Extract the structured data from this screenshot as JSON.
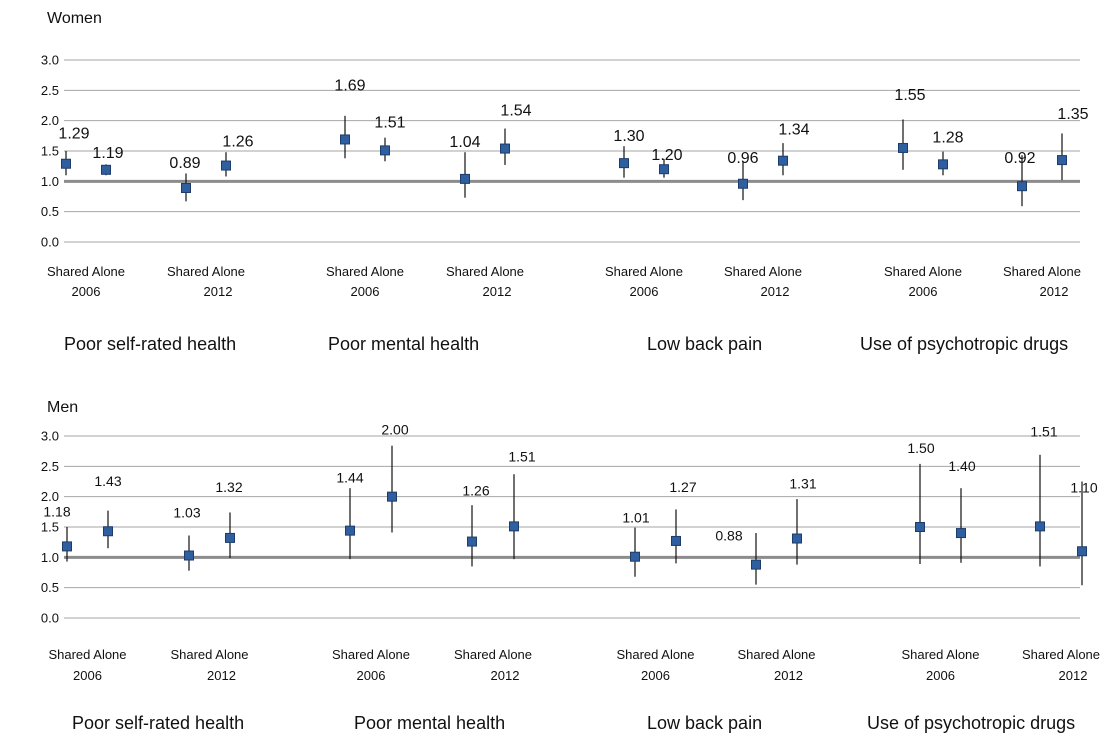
{
  "chart_data": [
    {
      "type": "scatter",
      "title": "Women",
      "yticks": [
        "0.0",
        "0.5",
        "1.0",
        "1.5",
        "2.0",
        "2.5",
        "3.0"
      ],
      "ylim": [
        0,
        3
      ],
      "reference_line": 1.0,
      "groups": [
        "Poor self-rated health",
        "Poor mental health",
        "Low back pain",
        "Use of psychotropic drugs"
      ],
      "subgroups": [
        {
          "labels": [
            "Shared",
            "Alone"
          ],
          "year": "2006"
        },
        {
          "labels": [
            "Shared",
            "Alone"
          ],
          "year": "2012"
        }
      ],
      "points": [
        {
          "group": "Poor self-rated health",
          "year": "2006",
          "category": "Shared",
          "value": 1.29,
          "label": "1.29",
          "ci": [
            1.1,
            1.5
          ]
        },
        {
          "group": "Poor self-rated health",
          "year": "2006",
          "category": "Alone",
          "value": 1.19,
          "label": "1.19",
          "ci": [
            1.1,
            1.28
          ]
        },
        {
          "group": "Poor self-rated health",
          "year": "2012",
          "category": "Shared",
          "value": 0.89,
          "label": "0.89",
          "ci": [
            0.67,
            1.13
          ]
        },
        {
          "group": "Poor self-rated health",
          "year": "2012",
          "category": "Alone",
          "value": 1.26,
          "label": "1.26",
          "ci": [
            1.08,
            1.48
          ]
        },
        {
          "group": "Poor mental health",
          "year": "2006",
          "category": "Shared",
          "value": 1.69,
          "label": "1.69",
          "ci": [
            1.38,
            2.08
          ]
        },
        {
          "group": "Poor mental health",
          "year": "2006",
          "category": "Alone",
          "value": 1.51,
          "label": "1.51",
          "ci": [
            1.33,
            1.72
          ]
        },
        {
          "group": "Poor mental health",
          "year": "2012",
          "category": "Shared",
          "value": 1.04,
          "label": "1.04",
          "ci": [
            0.73,
            1.48
          ]
        },
        {
          "group": "Poor mental health",
          "year": "2012",
          "category": "Alone",
          "value": 1.54,
          "label": "1.54",
          "ci": [
            1.27,
            1.87
          ]
        },
        {
          "group": "Low back pain",
          "year": "2006",
          "category": "Shared",
          "value": 1.3,
          "label": "1.30",
          "ci": [
            1.06,
            1.58
          ]
        },
        {
          "group": "Low back pain",
          "year": "2006",
          "category": "Alone",
          "value": 1.2,
          "label": "1.20",
          "ci": [
            1.06,
            1.37
          ]
        },
        {
          "group": "Low back pain",
          "year": "2012",
          "category": "Shared",
          "value": 0.96,
          "label": "0.96",
          "ci": [
            0.69,
            1.32
          ]
        },
        {
          "group": "Low back pain",
          "year": "2012",
          "category": "Alone",
          "value": 1.34,
          "label": "1.34",
          "ci": [
            1.1,
            1.63
          ]
        },
        {
          "group": "Use of psychotropic drugs",
          "year": "2006",
          "category": "Shared",
          "value": 1.55,
          "label": "1.55",
          "ci": [
            1.19,
            2.02
          ]
        },
        {
          "group": "Use of psychotropic drugs",
          "year": "2006",
          "category": "Alone",
          "value": 1.28,
          "label": "1.28",
          "ci": [
            1.1,
            1.49
          ]
        },
        {
          "group": "Use of psychotropic drugs",
          "year": "2012",
          "category": "Shared",
          "value": 0.92,
          "label": "0.92",
          "ci": [
            0.59,
            1.43
          ]
        },
        {
          "group": "Use of psychotropic drugs",
          "year": "2012",
          "category": "Alone",
          "value": 1.35,
          "label": "1.35",
          "ci": [
            1.02,
            1.79
          ]
        }
      ]
    },
    {
      "type": "scatter",
      "title": "Men",
      "yticks": [
        "0.0",
        "0.5",
        "1.0",
        "1.5",
        "2.0",
        "2.5",
        "3.0"
      ],
      "ylim": [
        0,
        3
      ],
      "reference_line": 1.0,
      "groups": [
        "Poor self-rated health",
        "Poor mental health",
        "Low back pain",
        "Use of psychotropic drugs"
      ],
      "subgroups": [
        {
          "labels": [
            "Shared",
            "Alone"
          ],
          "year": "2006"
        },
        {
          "labels": [
            "Shared",
            "Alone"
          ],
          "year": "2012"
        }
      ],
      "points": [
        {
          "group": "Poor self-rated health",
          "year": "2006",
          "category": "Shared",
          "value": 1.18,
          "label": "1.18",
          "ci": [
            0.93,
            1.5
          ]
        },
        {
          "group": "Poor self-rated health",
          "year": "2006",
          "category": "Alone",
          "value": 1.43,
          "label": "1.43",
          "ci": [
            1.15,
            1.77
          ]
        },
        {
          "group": "Poor self-rated health",
          "year": "2012",
          "category": "Shared",
          "value": 1.03,
          "label": "1.03",
          "ci": [
            0.78,
            1.36
          ]
        },
        {
          "group": "Poor self-rated health",
          "year": "2012",
          "category": "Alone",
          "value": 1.32,
          "label": "1.32",
          "ci": [
            0.99,
            1.74
          ]
        },
        {
          "group": "Poor mental health",
          "year": "2006",
          "category": "Shared",
          "value": 1.44,
          "label": "1.44",
          "ci": [
            0.97,
            2.14
          ]
        },
        {
          "group": "Poor mental health",
          "year": "2006",
          "category": "Alone",
          "value": 2.0,
          "label": "2.00",
          "ci": [
            1.41,
            2.84
          ]
        },
        {
          "group": "Poor mental health",
          "year": "2012",
          "category": "Shared",
          "value": 1.26,
          "label": "1.26",
          "ci": [
            0.85,
            1.86
          ]
        },
        {
          "group": "Poor mental health",
          "year": "2012",
          "category": "Alone",
          "value": 1.51,
          "label": "1.51",
          "ci": [
            0.97,
            2.37
          ]
        },
        {
          "group": "Low back pain",
          "year": "2006",
          "category": "Shared",
          "value": 1.01,
          "label": "1.01",
          "ci": [
            0.68,
            1.49
          ]
        },
        {
          "group": "Low back pain",
          "year": "2006",
          "category": "Alone",
          "value": 1.27,
          "label": "1.27",
          "ci": [
            0.9,
            1.79
          ]
        },
        {
          "group": "Low back pain",
          "year": "2012",
          "category": "Shared",
          "value": 0.88,
          "label": "0.88",
          "ci": [
            0.55,
            1.4
          ]
        },
        {
          "group": "Low back pain",
          "year": "2012",
          "category": "Alone",
          "value": 1.31,
          "label": "1.31",
          "ci": [
            0.88,
            1.96
          ]
        },
        {
          "group": "Use of psychotropic drugs",
          "year": "2006",
          "category": "Shared",
          "value": 1.5,
          "label": "1.50",
          "ci": [
            0.89,
            2.54
          ]
        },
        {
          "group": "Use of psychotropic drugs",
          "year": "2006",
          "category": "Alone",
          "value": 1.4,
          "label": "1.40",
          "ci": [
            0.91,
            2.14
          ]
        },
        {
          "group": "Use of psychotropic drugs",
          "year": "2012",
          "category": "Shared",
          "value": 1.51,
          "label": "1.51",
          "ci": [
            0.85,
            2.69
          ]
        },
        {
          "group": "Use of psychotropic drugs",
          "year": "2012",
          "category": "Alone",
          "value": 1.1,
          "label": "1.10",
          "ci": [
            0.54,
            2.25
          ]
        }
      ]
    }
  ],
  "colors": {
    "marker": "#2f5f9e",
    "marker_edge": "#1c3d6b",
    "gridline": "#a6a6a6",
    "reference_line": "#8c8c8c",
    "error_bar": "#111111"
  }
}
